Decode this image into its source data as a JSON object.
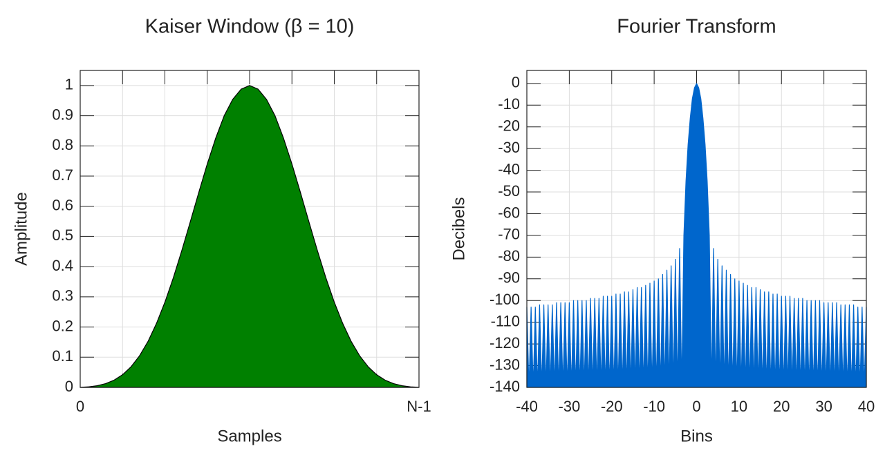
{
  "chart_data": [
    {
      "type": "area",
      "title": "Kaiser Window (β = 10)",
      "x_label": "Samples",
      "y_label": "Amplitude",
      "x": [
        0,
        1,
        2,
        3,
        4,
        5,
        6,
        7,
        8,
        9,
        10,
        11,
        12,
        13,
        14,
        15,
        16,
        17,
        18,
        19,
        20,
        21,
        22,
        23,
        24,
        25,
        26,
        27,
        28,
        29,
        30,
        31,
        32,
        33,
        34,
        35,
        36,
        37,
        38,
        39,
        40
      ],
      "values": [
        0.0004,
        0.0019,
        0.0055,
        0.0124,
        0.0239,
        0.042,
        0.0683,
        0.1045,
        0.1519,
        0.2115,
        0.2822,
        0.3635,
        0.4538,
        0.549,
        0.646,
        0.74,
        0.826,
        0.9,
        0.954,
        0.988,
        1,
        0.988,
        0.954,
        0.9,
        0.826,
        0.74,
        0.646,
        0.549,
        0.4538,
        0.3635,
        0.2822,
        0.2115,
        0.1519,
        0.1045,
        0.0683,
        0.042,
        0.0239,
        0.0124,
        0.0055,
        0.0019,
        0.0004
      ],
      "color": "#008000",
      "line_color": "#000000",
      "xlim": [
        0,
        40
      ],
      "xticks": [
        0,
        {
          "value": 40,
          "label": "N-1"
        }
      ],
      "ylim": [
        0,
        1.05
      ],
      "yticks": [
        0,
        0.1,
        0.2,
        0.3,
        0.4,
        0.5,
        0.6,
        0.7,
        0.8,
        0.9,
        1
      ],
      "grid": true
    },
    {
      "type": "area",
      "title": "Fourier Transform",
      "x_label": "Bins",
      "y_label": "Decibels",
      "x": [
        -40,
        -39.5,
        -39,
        -38.5,
        -38,
        -37.5,
        -37,
        -36.5,
        -36,
        -35.5,
        -35,
        -34.5,
        -34,
        -33.5,
        -33,
        -32.5,
        -32,
        -31.5,
        -31,
        -30.5,
        -30,
        -29.5,
        -29,
        -28.5,
        -28,
        -27.5,
        -27,
        -26.5,
        -26,
        -25.5,
        -25,
        -24.5,
        -24,
        -23.5,
        -23,
        -22.5,
        -22,
        -21.5,
        -21,
        -20.5,
        -20,
        -19.5,
        -19,
        -18.5,
        -18,
        -17.5,
        -17,
        -16.5,
        -16,
        -15.5,
        -15,
        -14.5,
        -14,
        -13.5,
        -13,
        -12.5,
        -12,
        -11.5,
        -11,
        -10.5,
        -10,
        -9.5,
        -9,
        -8.5,
        -8,
        -7.5,
        -7,
        -6.5,
        -6,
        -5.5,
        -5,
        -4.5,
        -4,
        -3.5,
        -3,
        -2.5,
        -2,
        -1.5,
        -1,
        -0.5,
        0,
        0.5,
        1,
        1.5,
        2,
        2.5,
        3,
        3.5,
        4,
        4.5,
        5,
        5.5,
        6,
        6.5,
        7,
        7.5,
        8,
        8.5,
        9,
        9.5,
        10,
        10.5,
        11,
        11.5,
        12,
        12.5,
        13,
        13.5,
        14,
        14.5,
        15,
        15.5,
        16,
        16.5,
        17,
        17.5,
        18,
        18.5,
        19,
        19.5,
        20,
        20.5,
        21,
        21.5,
        22,
        22.5,
        23,
        23.5,
        24,
        24.5,
        25,
        25.5,
        26,
        26.5,
        27,
        27.5,
        28,
        28.5,
        29,
        29.5,
        30,
        30.5,
        31,
        31.5,
        32,
        32.5,
        33,
        33.5,
        34,
        34.5,
        35,
        35.5,
        36,
        36.5,
        37,
        37.5,
        38,
        38.5,
        39,
        39.5,
        40
      ],
      "values": [
        -103,
        -140,
        -103,
        -140,
        -103,
        -140,
        -102,
        -140,
        -102,
        -140,
        -102,
        -140,
        -102,
        -140,
        -101,
        -140,
        -101,
        -140,
        -101,
        -140,
        -101,
        -140,
        -100,
        -140,
        -100,
        -140,
        -100,
        -140,
        -100,
        -140,
        -99,
        -140,
        -99,
        -140,
        -99,
        -140,
        -98,
        -140,
        -98,
        -140,
        -98,
        -140,
        -97,
        -140,
        -97,
        -140,
        -96,
        -140,
        -96,
        -140,
        -95,
        -140,
        -94,
        -140,
        -94,
        -140,
        -93,
        -140,
        -92,
        -140,
        -91,
        -140,
        -90,
        -140,
        -88,
        -140,
        -86,
        -140,
        -84,
        -140,
        -81,
        -140,
        -76,
        -140,
        -70,
        -45,
        -28,
        -16,
        -7,
        -2,
        0,
        -2,
        -7,
        -16,
        -28,
        -45,
        -70,
        -140,
        -76,
        -140,
        -81,
        -140,
        -84,
        -140,
        -86,
        -140,
        -88,
        -140,
        -90,
        -140,
        -91,
        -140,
        -92,
        -140,
        -93,
        -140,
        -94,
        -140,
        -94,
        -140,
        -95,
        -140,
        -96,
        -140,
        -96,
        -140,
        -97,
        -140,
        -97,
        -140,
        -98,
        -140,
        -98,
        -140,
        -98,
        -140,
        -99,
        -140,
        -99,
        -140,
        -99,
        -140,
        -100,
        -140,
        -100,
        -140,
        -100,
        -140,
        -100,
        -140,
        -101,
        -140,
        -101,
        -140,
        -101,
        -140,
        -101,
        -140,
        -102,
        -140,
        -102,
        -140,
        -102,
        -140,
        -102,
        -140,
        -103,
        -140,
        -103,
        -140,
        -103
      ],
      "color": "#0066cc",
      "line_color": "#0066cc",
      "xlim": [
        -40,
        40
      ],
      "xticks": [
        -40,
        -30,
        -20,
        -10,
        0,
        10,
        20,
        30,
        40
      ],
      "ylim": [
        -140,
        6
      ],
      "yticks": [
        0,
        -10,
        -20,
        -30,
        -40,
        -50,
        -60,
        -70,
        -80,
        -90,
        -100,
        -110,
        -120,
        -130,
        -140
      ],
      "grid": true
    }
  ]
}
